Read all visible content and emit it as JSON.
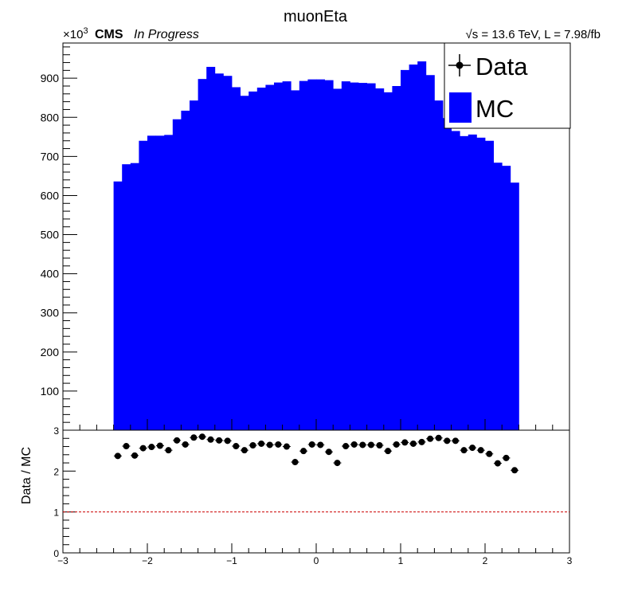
{
  "chart_data": [
    {
      "type": "bar",
      "title": "muonEta",
      "multiplier_prefix": "×10",
      "multiplier_exp": "3",
      "cms_label": "CMS",
      "cms_sublabel": "In Progress",
      "lumi_sqrt": "√s",
      "lumi_label": " = 13.6 TeV, L = 7.98/fb",
      "xlim": [
        -3,
        3
      ],
      "ylim": [
        0,
        990
      ],
      "y_ticks": [
        100,
        200,
        300,
        400,
        500,
        600,
        700,
        800,
        900
      ],
      "bin_edges_from": -2.4,
      "bin_width": 0.1,
      "legend": {
        "data_label": "Data",
        "mc_label": "MC",
        "mc_color": "#0000ff"
      },
      "series": [
        {
          "name": "MC",
          "color": "#0000ff",
          "values": [
            636,
            680,
            683,
            740,
            753,
            753,
            755,
            795,
            817,
            843,
            898,
            929,
            912,
            906,
            877,
            855,
            866,
            876,
            883,
            889,
            892,
            869,
            893,
            897,
            897,
            895,
            873,
            892,
            889,
            888,
            887,
            874,
            864,
            880,
            921,
            935,
            943,
            908,
            843,
            798,
            765,
            752,
            756,
            748,
            740,
            684,
            676,
            633
          ]
        }
      ]
    },
    {
      "type": "scatter",
      "ylabel": "Data / MC",
      "xlim": [
        -3,
        3
      ],
      "ylim": [
        0,
        3
      ],
      "y_ticks": [
        0,
        1,
        2,
        3
      ],
      "x_ticks": [
        -3,
        -2,
        -1,
        0,
        1,
        2,
        3
      ],
      "x_tick_labels": [
        "−3",
        "−2",
        "−1",
        "0",
        "1",
        "2",
        "3"
      ],
      "reference_line": 1,
      "reference_color": "#cc0000",
      "series": [
        {
          "name": "Data / MC",
          "x": [
            -2.35,
            -2.25,
            -2.15,
            -2.05,
            -1.95,
            -1.85,
            -1.75,
            -1.65,
            -1.55,
            -1.45,
            -1.35,
            -1.25,
            -1.15,
            -1.05,
            -0.95,
            -0.85,
            -0.75,
            -0.65,
            -0.55,
            -0.45,
            -0.35,
            -0.25,
            -0.15,
            -0.05,
            0.05,
            0.15,
            0.25,
            0.35,
            0.45,
            0.55,
            0.65,
            0.75,
            0.85,
            0.95,
            1.05,
            1.15,
            1.25,
            1.35,
            1.45,
            1.55,
            1.65,
            1.75,
            1.85,
            1.95,
            2.05,
            2.15,
            2.25,
            2.35
          ],
          "values": [
            2.37,
            2.61,
            2.38,
            2.56,
            2.59,
            2.62,
            2.51,
            2.75,
            2.65,
            2.82,
            2.84,
            2.77,
            2.75,
            2.74,
            2.61,
            2.51,
            2.63,
            2.67,
            2.64,
            2.65,
            2.6,
            2.22,
            2.49,
            2.65,
            2.64,
            2.47,
            2.2,
            2.61,
            2.65,
            2.64,
            2.64,
            2.63,
            2.49,
            2.65,
            2.7,
            2.67,
            2.71,
            2.79,
            2.81,
            2.74,
            2.74,
            2.51,
            2.57,
            2.51,
            2.42,
            2.19,
            2.32,
            2.02
          ]
        }
      ]
    }
  ]
}
